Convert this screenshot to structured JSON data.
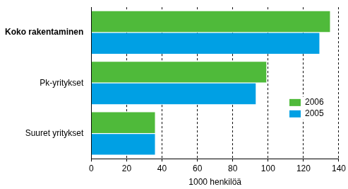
{
  "chart_data": {
    "type": "bar",
    "orientation": "horizontal",
    "categories": [
      "Koko rakentaminen",
      "Pk-yritykset",
      "Suuret yritykset"
    ],
    "series": [
      {
        "name": "2006",
        "color": "#4fba3a",
        "values": [
          135,
          99,
          36
        ]
      },
      {
        "name": "2005",
        "color": "#00a0e4",
        "values": [
          129,
          93,
          36
        ]
      }
    ],
    "x_label": "1000 henkilöä",
    "xlim": [
      0,
      140
    ],
    "xticks": [
      0,
      20,
      40,
      60,
      80,
      100,
      120,
      140
    ],
    "grid": true,
    "legend": "right"
  }
}
